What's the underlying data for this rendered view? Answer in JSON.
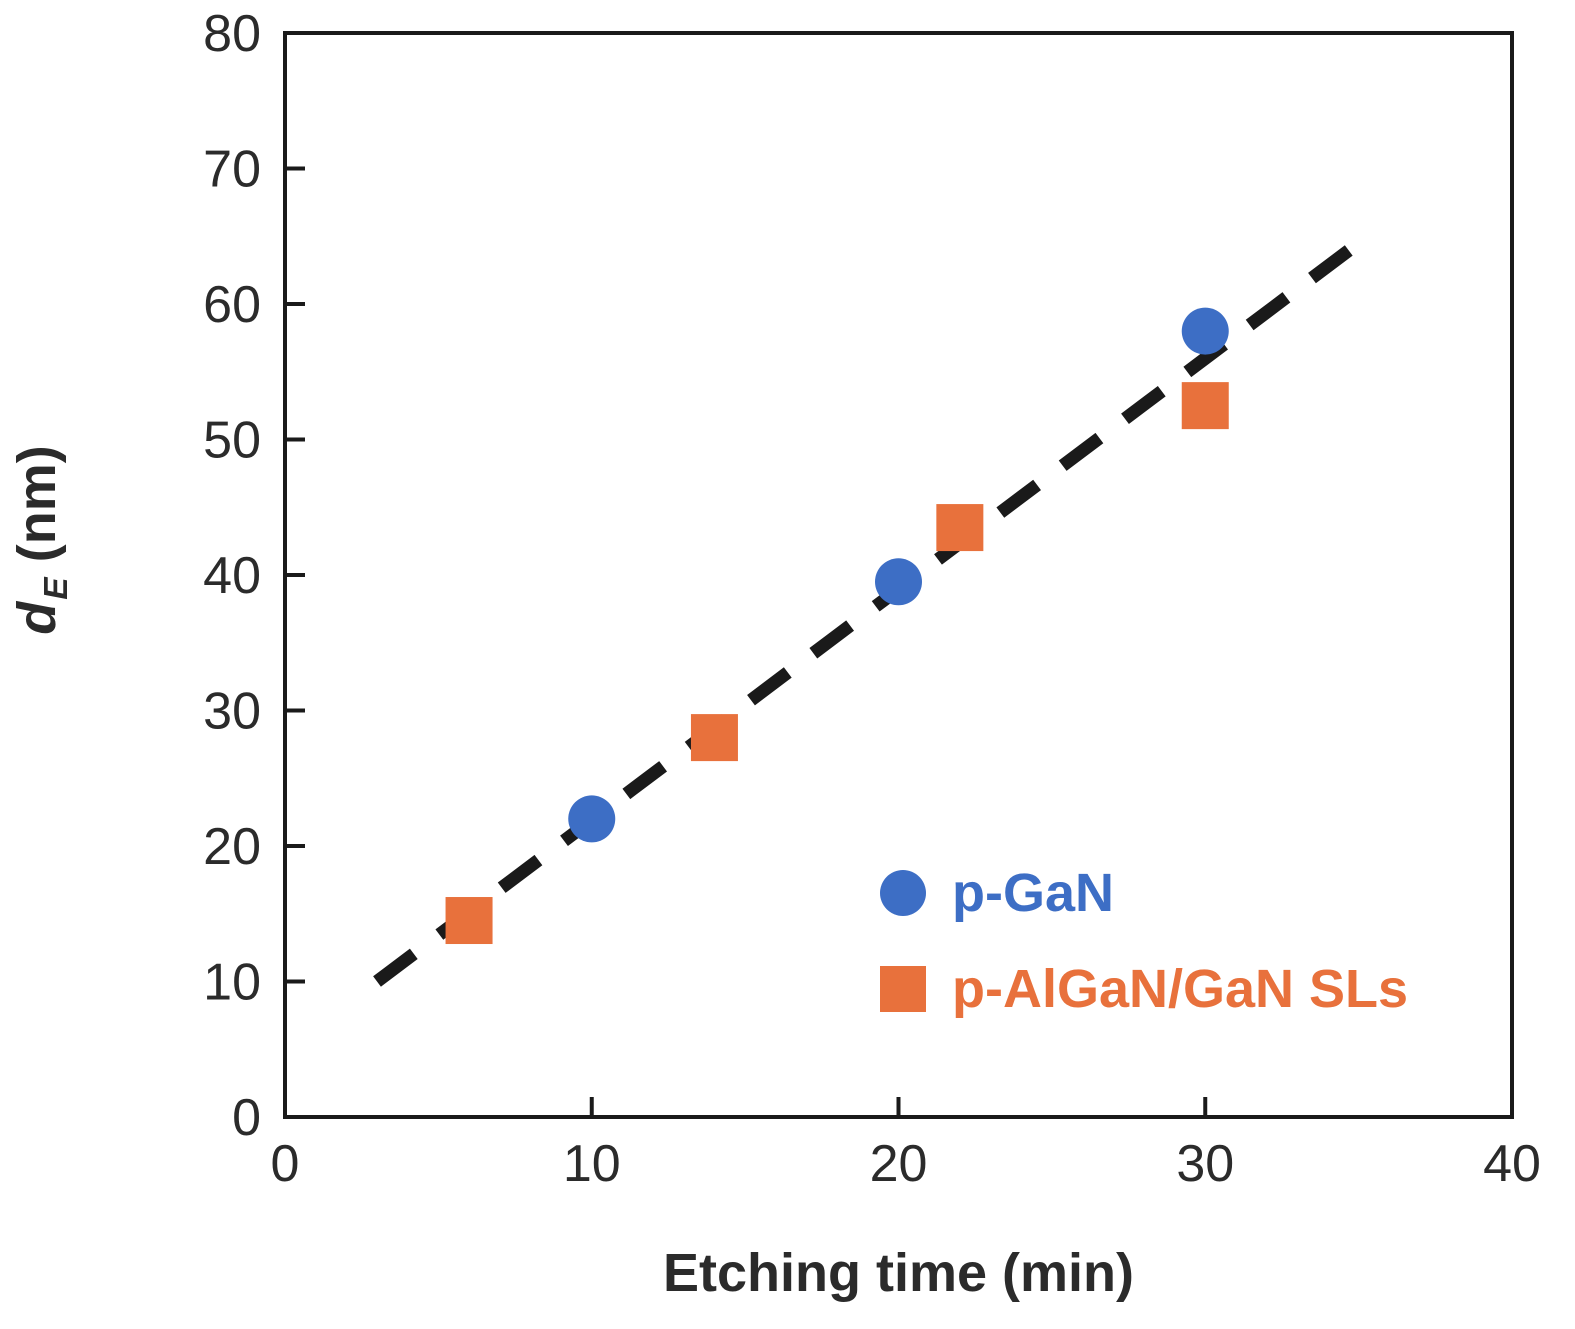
{
  "chart_data": {
    "type": "scatter",
    "title": "",
    "xlabel": "Etching time (min)",
    "ylabel": "d_E (nm)",
    "ylabel_parts": {
      "symbol": "d",
      "subscript": "E",
      "units": "(nm)"
    },
    "xlim": [
      0,
      40
    ],
    "ylim": [
      0,
      80
    ],
    "xticks": [
      0,
      10,
      20,
      30,
      40
    ],
    "yticks": [
      0,
      10,
      20,
      30,
      40,
      50,
      60,
      70,
      80
    ],
    "grid": false,
    "legend_position": "inside-lower-right",
    "series": [
      {
        "name": "p-GaN",
        "marker": "circle",
        "color": "#3D6EC5",
        "points": [
          [
            10,
            22
          ],
          [
            20,
            39.5
          ],
          [
            30,
            58
          ]
        ]
      },
      {
        "name": "p-AlGaN/GaN SLs",
        "marker": "square",
        "color": "#E8713C",
        "points": [
          [
            6,
            14.5
          ],
          [
            14,
            28
          ],
          [
            22,
            43.5
          ],
          [
            30,
            52.5
          ]
        ]
      }
    ],
    "trendline": {
      "style": "dashed",
      "color": "#1A1A1A",
      "from": [
        3,
        10
      ],
      "to": [
        35,
        64.5
      ]
    },
    "axis_color": "#1A1A1A",
    "tick_label_color": "#2B2B2B"
  }
}
